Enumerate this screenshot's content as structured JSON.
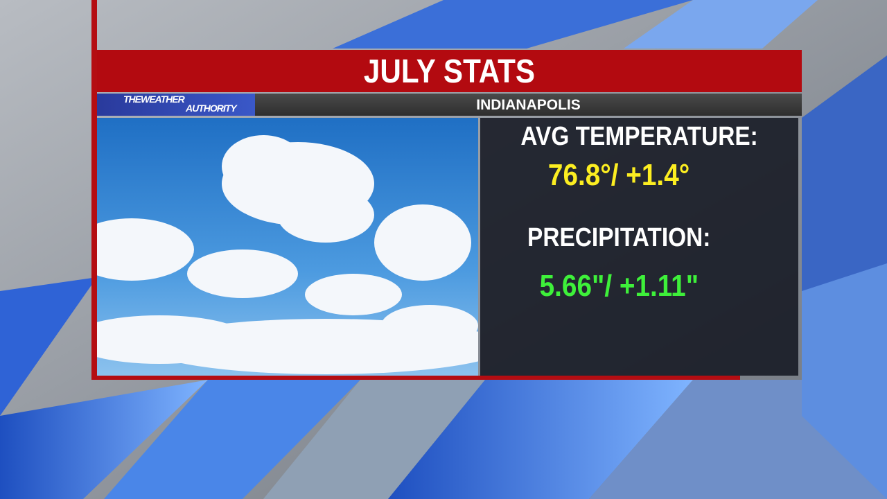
{
  "header": {
    "title": "JULY STATS",
    "location": "INDIANAPOLIS"
  },
  "brand": {
    "line1": "THEWEATHER",
    "line2": "AUTHORITY"
  },
  "stats": [
    {
      "label": "AVG TEMPERATURE:",
      "value": "76.8°/ +1.4°"
    },
    {
      "label": "PRECIPITATION:",
      "value": "5.66\"/ +1.11\""
    }
  ]
}
